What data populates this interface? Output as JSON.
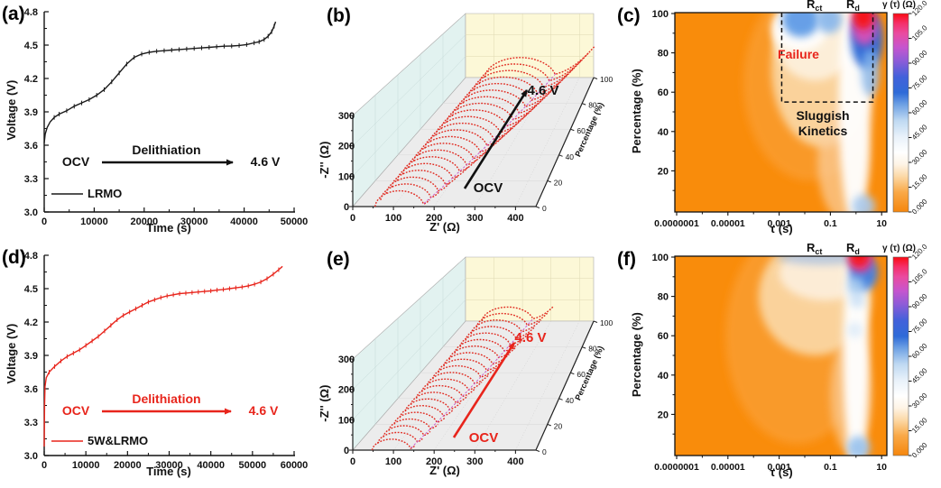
{
  "chart_data": [
    {
      "panel": "a",
      "letter": "(a)",
      "type": "line",
      "xlabel": "Time (s)",
      "ylabel": "Voltage (V)",
      "xlim": [
        0,
        50000
      ],
      "ylim": [
        3.0,
        4.8
      ],
      "xticks": [
        0,
        10000,
        20000,
        30000,
        40000,
        50000
      ],
      "yticks": [
        3.0,
        3.3,
        3.6,
        3.9,
        4.2,
        4.5,
        4.8
      ],
      "series": [
        {
          "name": "LRMO",
          "color": "#1a1a1a",
          "points": [
            [
              0,
              3.62
            ],
            [
              200,
              3.7
            ],
            [
              600,
              3.76
            ],
            [
              1200,
              3.81
            ],
            [
              2000,
              3.85
            ],
            [
              3000,
              3.88
            ],
            [
              4500,
              3.91
            ],
            [
              6000,
              3.95
            ],
            [
              7500,
              3.98
            ],
            [
              9000,
              4.01
            ],
            [
              10500,
              4.05
            ],
            [
              12000,
              4.1
            ],
            [
              13500,
              4.17
            ],
            [
              15000,
              4.25
            ],
            [
              16500,
              4.33
            ],
            [
              18000,
              4.39
            ],
            [
              19500,
              4.42
            ],
            [
              21000,
              4.435
            ],
            [
              22500,
              4.445
            ],
            [
              24000,
              4.45
            ],
            [
              25500,
              4.455
            ],
            [
              27000,
              4.46
            ],
            [
              28500,
              4.465
            ],
            [
              30000,
              4.47
            ],
            [
              31500,
              4.475
            ],
            [
              33000,
              4.48
            ],
            [
              34500,
              4.485
            ],
            [
              36000,
              4.49
            ],
            [
              37500,
              4.492
            ],
            [
              39000,
              4.497
            ],
            [
              40500,
              4.505
            ],
            [
              42000,
              4.52
            ],
            [
              43000,
              4.53
            ],
            [
              44000,
              4.55
            ],
            [
              44800,
              4.58
            ],
            [
              45500,
              4.62
            ],
            [
              46000,
              4.67
            ],
            [
              46300,
              4.71
            ]
          ]
        }
      ],
      "annotations": {
        "ocv": "OCV",
        "process": "Delithiation",
        "target": "4.6 V",
        "arrow_color": "#111111"
      }
    },
    {
      "panel": "b",
      "letter": "(b)",
      "type": "nyquist3d",
      "xlabel": "Z' (Ω)",
      "ylabel": "-Z'' (Ω)",
      "zlabel": "Percentage (%)",
      "xlim": [
        0,
        450
      ],
      "ylim": [
        0,
        300
      ],
      "zlim": [
        0,
        100
      ],
      "xticks": [
        0,
        100,
        200,
        300,
        400
      ],
      "yticks": [
        0,
        100,
        200,
        300
      ],
      "zticks": [
        0,
        20,
        40,
        60,
        80,
        100
      ],
      "series_color": "#e02a20",
      "curves": {
        "p_step": 5,
        "p_max": 100,
        "r0": [
          55,
          0.12
        ],
        "width": [
          120,
          1.3
        ],
        "height": [
          52,
          0.42
        ],
        "tail_dx": [
          15,
          1.25
        ],
        "tail_slope": 0.95
      },
      "trajectory_color": "#c84fc8",
      "annotations": {
        "start": "OCV",
        "end": "4.6 V",
        "arrow_color": "#111111"
      }
    },
    {
      "panel": "c",
      "letter": "(c)",
      "type": "heatmap",
      "xlabel": "τ (s)",
      "ylabel": "Percentage (%)",
      "xtick_labels": [
        "0.0000001",
        "0.00001",
        "0.001",
        "0.1",
        "10"
      ],
      "xtick_logs": [
        -7,
        -5,
        -3,
        -1,
        1
      ],
      "yticks": [
        20,
        40,
        60,
        80,
        100
      ],
      "base_color": "#F98C0B",
      "colorbar": {
        "title": "γ (τ) (Ω)",
        "tick_labels": [
          "0.000",
          "15.00",
          "30.00",
          "45.00",
          "60.00",
          "75.00",
          "90.00",
          "105.0",
          "120.0"
        ],
        "stops": [
          [
            0,
            "#F5860C"
          ],
          [
            0.1,
            "#F9A948"
          ],
          [
            0.18,
            "#FCD9A8"
          ],
          [
            0.24,
            "#FEF4E6"
          ],
          [
            0.3,
            "#FFFFFF"
          ],
          [
            0.38,
            "#E8F1FA"
          ],
          [
            0.46,
            "#BFD9F2"
          ],
          [
            0.54,
            "#6FA2E4"
          ],
          [
            0.6,
            "#2F6BD8"
          ],
          [
            0.68,
            "#4161DA"
          ],
          [
            0.76,
            "#8C5CD8"
          ],
          [
            0.83,
            "#C655CE"
          ],
          [
            0.9,
            "#EA4BA0"
          ],
          [
            0.95,
            "#F5306A"
          ],
          [
            1,
            "#FA0A12"
          ]
        ]
      },
      "peak_labels": [
        {
          "text": "R",
          "sub": "ct"
        },
        {
          "text": "R",
          "sub": "d"
        }
      ],
      "annotations": {
        "failure": "Failure",
        "sluggish1": "Sluggish",
        "sluggish2": "Kinetics"
      },
      "dashed_box": {
        "log_left": -2.9,
        "log_right": 0.66,
        "p_bottom": 55
      },
      "features": [
        [
          -1.8,
          65,
          2.6,
          50,
          "#FA9C2E",
          0.85
        ],
        [
          -1.3,
          72,
          2.0,
          40,
          "#FBD9A8",
          0.9
        ],
        [
          -0.5,
          25,
          1.0,
          30,
          "#FBCF9E",
          0.7
        ],
        [
          -1.6,
          88,
          1.6,
          22,
          "#FDF0DC",
          0.95
        ],
        [
          -0.05,
          55,
          0.62,
          62,
          "#FFFFFF",
          0.95
        ],
        [
          -2.2,
          93,
          1.1,
          12,
          "#FFFFFF",
          0.9
        ],
        [
          -2.15,
          97,
          0.72,
          9,
          "#5E9BE6",
          0.95
        ],
        [
          -1.05,
          97,
          0.5,
          7,
          "#86B6EC",
          0.9
        ],
        [
          0.42,
          87,
          0.62,
          15,
          "#2E6BD6",
          0.98
        ],
        [
          0.55,
          70,
          0.35,
          12,
          "#86B6EC",
          0.8
        ],
        [
          0.33,
          93,
          0.5,
          9,
          "#D94FB8",
          0.95
        ],
        [
          0.28,
          99,
          0.42,
          7,
          "#F5151E",
          1
        ],
        [
          0.3,
          2,
          0.45,
          6,
          "#A9CBF0",
          0.9
        ]
      ]
    },
    {
      "panel": "d",
      "letter": "(d)",
      "type": "line",
      "xlabel": "Time (s)",
      "ylabel": "Voltage (V)",
      "xlim": [
        0,
        60000
      ],
      "ylim": [
        3.0,
        4.8
      ],
      "xticks": [
        0,
        10000,
        20000,
        30000,
        40000,
        50000,
        60000
      ],
      "yticks": [
        3.0,
        3.3,
        3.6,
        3.9,
        4.2,
        4.5,
        4.8
      ],
      "series": [
        {
          "name": "5W&LRMO",
          "color": "#e8251c",
          "points": [
            [
              0,
              3.08
            ],
            [
              80,
              3.45
            ],
            [
              200,
              3.62
            ],
            [
              500,
              3.7
            ],
            [
              1200,
              3.75
            ],
            [
              2500,
              3.8
            ],
            [
              4000,
              3.85
            ],
            [
              5500,
              3.89
            ],
            [
              7000,
              3.92
            ],
            [
              8500,
              3.95
            ],
            [
              10000,
              3.99
            ],
            [
              11500,
              4.03
            ],
            [
              13000,
              4.07
            ],
            [
              14500,
              4.12
            ],
            [
              16000,
              4.17
            ],
            [
              17500,
              4.22
            ],
            [
              19000,
              4.26
            ],
            [
              20500,
              4.29
            ],
            [
              22000,
              4.32
            ],
            [
              23500,
              4.35
            ],
            [
              25000,
              4.38
            ],
            [
              26500,
              4.4
            ],
            [
              28000,
              4.42
            ],
            [
              29500,
              4.435
            ],
            [
              31000,
              4.445
            ],
            [
              32500,
              4.455
            ],
            [
              34000,
              4.46
            ],
            [
              35500,
              4.465
            ],
            [
              37000,
              4.47
            ],
            [
              38500,
              4.475
            ],
            [
              40000,
              4.48
            ],
            [
              41500,
              4.487
            ],
            [
              43000,
              4.493
            ],
            [
              44500,
              4.5
            ],
            [
              46000,
              4.507
            ],
            [
              47500,
              4.515
            ],
            [
              49000,
              4.525
            ],
            [
              50500,
              4.54
            ],
            [
              52000,
              4.56
            ],
            [
              53500,
              4.59
            ],
            [
              55000,
              4.63
            ],
            [
              56300,
              4.67
            ],
            [
              57200,
              4.7
            ]
          ]
        }
      ],
      "annotations": {
        "ocv": "OCV",
        "process": "Delithiation",
        "target": "4.6 V",
        "arrow_color": "#e8251c"
      }
    },
    {
      "panel": "e",
      "letter": "(e)",
      "type": "nyquist3d",
      "xlabel": "Z' (Ω)",
      "ylabel": "-Z'' (Ω)",
      "zlabel": "Percentage (%)",
      "xlim": [
        0,
        450
      ],
      "ylim": [
        0,
        300
      ],
      "zlim": [
        0,
        100
      ],
      "xticks": [
        0,
        100,
        200,
        300,
        400
      ],
      "yticks": [
        0,
        100,
        200,
        300
      ],
      "zticks": [
        0,
        20,
        40,
        60,
        80,
        100
      ],
      "series_color": "#e02a20",
      "curves": {
        "p_step": 5,
        "p_max": 100,
        "r0": [
          48,
          0.1
        ],
        "width": [
          95,
          0.85
        ],
        "height": [
          36,
          0.3
        ],
        "tail_dx": [
          10,
          0.62
        ],
        "tail_slope": 0.8
      },
      "trajectory_color": "#c84fc8",
      "annotations": {
        "start": "OCV",
        "end": "4.6 V",
        "arrow_color": "#e8251c"
      }
    },
    {
      "panel": "f",
      "letter": "(f)",
      "type": "heatmap",
      "xlabel": "τ (s)",
      "ylabel": "Percentage (%)",
      "xtick_labels": [
        "0.0000001",
        "0.00001",
        "0.001",
        "0.1",
        "10"
      ],
      "xtick_logs": [
        -7,
        -5,
        -3,
        -1,
        1
      ],
      "yticks": [
        20,
        40,
        60,
        80,
        100
      ],
      "base_color": "#F98C0B",
      "colorbar": {
        "title": "γ (τ) (Ω)",
        "tick_labels": [
          "0.000",
          "15.00",
          "30.00",
          "45.00",
          "60.00",
          "75.00",
          "90.00",
          "105.0",
          "120.0"
        ],
        "stops": [
          [
            0,
            "#F5860C"
          ],
          [
            0.1,
            "#F9A948"
          ],
          [
            0.18,
            "#FCD9A8"
          ],
          [
            0.24,
            "#FEF4E6"
          ],
          [
            0.3,
            "#FFFFFF"
          ],
          [
            0.38,
            "#E8F1FA"
          ],
          [
            0.46,
            "#BFD9F2"
          ],
          [
            0.54,
            "#6FA2E4"
          ],
          [
            0.6,
            "#2F6BD8"
          ],
          [
            0.68,
            "#4161DA"
          ],
          [
            0.76,
            "#8C5CD8"
          ],
          [
            0.83,
            "#C655CE"
          ],
          [
            0.9,
            "#EA4BA0"
          ],
          [
            0.95,
            "#F5306A"
          ],
          [
            1,
            "#FA0A12"
          ]
        ]
      },
      "peak_labels": [
        {
          "text": "R",
          "sub": "ct"
        },
        {
          "text": "R",
          "sub": "d"
        }
      ],
      "annotations": {},
      "features": [
        [
          -2.3,
          60,
          2.8,
          55,
          "#FA9C2E",
          0.9
        ],
        [
          -1.6,
          80,
          2.2,
          30,
          "#FBD9A8",
          0.9
        ],
        [
          -1.2,
          92,
          1.8,
          14,
          "#FDEEDA",
          0.95
        ],
        [
          -0.2,
          30,
          0.8,
          30,
          "#FBCF9E",
          0.65
        ],
        [
          0.0,
          50,
          0.5,
          60,
          "#FFFFFF",
          0.97
        ],
        [
          -1.3,
          100,
          1.8,
          4,
          "#7FA8E0",
          0.5
        ],
        [
          0.3,
          92,
          0.55,
          9,
          "#3C7BDC",
          0.95
        ],
        [
          0.18,
          98,
          0.45,
          6,
          "#E0459E",
          0.95
        ],
        [
          0.12,
          101,
          0.4,
          6,
          "#F5151E",
          1
        ],
        [
          0.0,
          85,
          0.35,
          5,
          "#A8CCEF",
          0.8
        ],
        [
          0.05,
          78,
          0.3,
          4,
          "#BFDAF4",
          0.7
        ],
        [
          -0.05,
          63,
          0.3,
          4,
          "#CFE3F7",
          0.6
        ],
        [
          0.1,
          3,
          0.45,
          6,
          "#9CC4EE",
          0.95
        ]
      ]
    }
  ]
}
